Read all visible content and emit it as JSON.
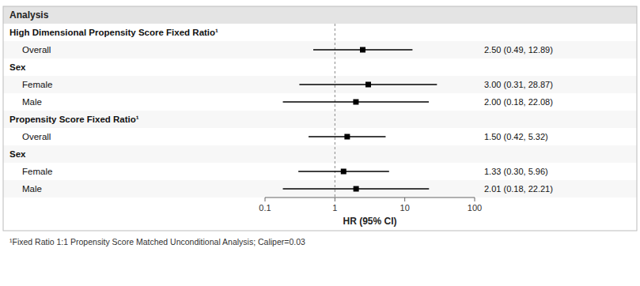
{
  "chart_data": {
    "type": "forest",
    "ylabel": "Analysis",
    "xlabel": "HR (95% CI)",
    "categories": [
      "High Dimensional Propensity Score Fixed Ratio¹",
      "Overall",
      "Sex",
      "Female",
      "Male",
      "Propensity Score Fixed Ratio¹",
      "Overall",
      "Sex",
      "Female",
      "Male"
    ],
    "values": [
      null,
      2.5,
      null,
      3.0,
      2.0,
      null,
      1.5,
      null,
      1.33,
      2.01
    ],
    "lower": [
      null,
      0.49,
      null,
      0.31,
      0.18,
      null,
      0.42,
      null,
      0.3,
      0.18
    ],
    "upper": [
      null,
      12.89,
      null,
      28.87,
      22.08,
      null,
      5.32,
      null,
      5.96,
      22.21
    ],
    "value_labels": [
      null,
      "2.50 (0.49, 12.89)",
      null,
      "3.00 (0.31, 28.87)",
      "2.00 (0.18, 22.08)",
      null,
      "1.50 (0.42, 5.32)",
      null,
      "1.33 (0.30, 5.96)",
      "2.01 (0.18, 22.21)"
    ],
    "data_labels": true,
    "log": "x",
    "xlim": [
      0.1,
      100
    ],
    "xticks": [
      0.1,
      1,
      10,
      100
    ],
    "reference_line": 1,
    "color": "#000000",
    "annotations": [
      "¹Fixed Ratio 1:1 Propensity Score Matched Unconditional Analysis; Caliper=0.03"
    ]
  }
}
